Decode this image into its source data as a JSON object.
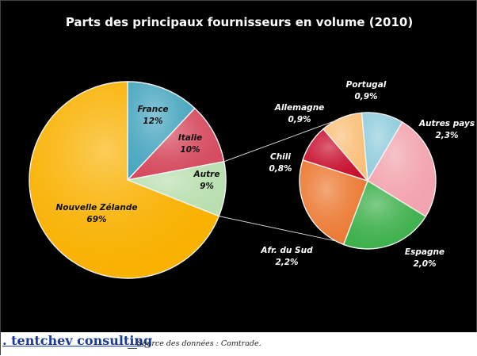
{
  "chart_data": {
    "type": "pie",
    "title": "Parts des principaux fournisseurs en volume (2010)",
    "main_pie": {
      "slices": [
        {
          "name": "France",
          "value": 12,
          "label": "12%",
          "color": "#4aa7c0"
        },
        {
          "name": "Italie",
          "value": 10,
          "label": "10%",
          "color": "#d54a5e"
        },
        {
          "name": "Autre",
          "value": 9,
          "label": "9%",
          "color": "#b9dfb0"
        },
        {
          "name": "Nouvelle Zélande",
          "value": 69,
          "label": "69%",
          "color": "#f9b100"
        }
      ]
    },
    "secondary_pie": {
      "slices": [
        {
          "name": "Portugal",
          "value": 0.9,
          "label": "0,9%",
          "color": "#93cddd"
        },
        {
          "name": "Autres pays",
          "value": 2.3,
          "label": "2,3%",
          "color": "#f2a3ad"
        },
        {
          "name": "Espagne",
          "value": 2.0,
          "label": "2,0%",
          "color": "#3db04b"
        },
        {
          "name": "Afr. du Sud",
          "value": 2.2,
          "label": "2,2%",
          "color": "#ec7a34"
        },
        {
          "name": "Chili",
          "value": 0.8,
          "label": "0,8%",
          "color": "#c8102e"
        },
        {
          "name": "Allemagne",
          "value": 0.9,
          "label": "0,9%",
          "color": "#fac07a"
        }
      ]
    }
  },
  "footer": {
    "brand": ". tentchev consulting",
    "source": "Source des données : Comtrade."
  }
}
